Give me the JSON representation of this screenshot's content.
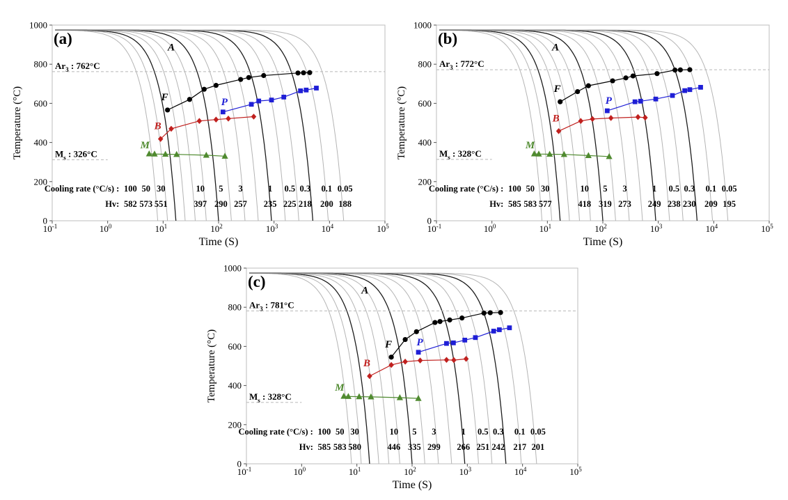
{
  "colors": {
    "ferrite": "#000000",
    "pearlite": "#1f1fd6",
    "bainite": "#c0201e",
    "martensite": "#4f8a2f",
    "cooling_curve": "#b4b4b4",
    "cooling_curve_bold": "#1c1c1c",
    "guide_line": "#b8b8b8"
  },
  "chart_data": [
    {
      "type": "line",
      "panel_label": "(a)",
      "ylabel": "Temperature (°C)",
      "xlabel": "Time (S)",
      "xscale": "log",
      "xlim": [
        0.1,
        100000
      ],
      "ylim": [
        0,
        1000
      ],
      "x_ticks": [
        {
          "base": "10",
          "exp": "-1"
        },
        {
          "base": "10",
          "exp": "0"
        },
        {
          "base": "10",
          "exp": "1"
        },
        {
          "base": "10",
          "exp": "2"
        },
        {
          "base": "10",
          "exp": "3"
        },
        {
          "base": "10",
          "exp": "4"
        },
        {
          "base": "10",
          "exp": "5"
        }
      ],
      "y_ticks": [
        "0",
        "200",
        "400",
        "600",
        "800",
        "1000"
      ],
      "ar3": {
        "label": "Ar",
        "sub": "3",
        "suffix": " : 762°C",
        "value": 762
      },
      "ms": {
        "label": "M",
        "sub": "s",
        "suffix": " : 326°C",
        "value": 326
      },
      "phase_labels": {
        "A": "A",
        "F": "F",
        "P": "P",
        "B": "B",
        "M": "M"
      },
      "cooling_rate_label": "Cooling rate (°C/s) :",
      "hv_label": "Hv:",
      "cooling_rates": [
        "100",
        "50",
        "30",
        "10",
        "5",
        "3",
        "1",
        "0.5",
        "0.3",
        "0.1",
        "0.05"
      ],
      "hv": [
        "582",
        "573",
        "551",
        "397",
        "290",
        "257",
        "235",
        "225",
        "218",
        "200",
        "188"
      ],
      "ferrite": {
        "x": [
          12,
          30,
          55,
          90,
          250,
          350,
          650,
          2700,
          3400,
          4400
        ],
        "y": [
          566,
          620,
          672,
          692,
          722,
          732,
          742,
          755,
          756,
          757
        ]
      },
      "pearlite": {
        "x": [
          120,
          390,
          530,
          900,
          1500,
          3000,
          3800,
          5800
        ],
        "y": [
          556,
          595,
          612,
          617,
          632,
          664,
          668,
          678
        ]
      },
      "bainite": {
        "x": [
          9,
          14,
          45,
          90,
          150,
          430
        ],
        "y": [
          418,
          470,
          510,
          517,
          522,
          532
        ]
      },
      "martensite": {
        "x": [
          5.6,
          7,
          11,
          17.5,
          60,
          130
        ],
        "y": [
          342,
          341,
          340,
          339,
          335,
          330
        ]
      }
    },
    {
      "type": "line",
      "panel_label": "(b)",
      "ylabel": "Temperature (°C)",
      "xlabel": "Time (S)",
      "xscale": "log",
      "xlim": [
        0.1,
        100000
      ],
      "ylim": [
        0,
        1000
      ],
      "x_ticks": [
        {
          "base": "10",
          "exp": "-1"
        },
        {
          "base": "10",
          "exp": "0"
        },
        {
          "base": "10",
          "exp": "1"
        },
        {
          "base": "10",
          "exp": "2"
        },
        {
          "base": "10",
          "exp": "3"
        },
        {
          "base": "10",
          "exp": "4"
        },
        {
          "base": "10",
          "exp": "5"
        }
      ],
      "y_ticks": [
        "0",
        "200",
        "400",
        "600",
        "800",
        "1000"
      ],
      "ar3": {
        "label": "Ar",
        "sub": "3",
        "suffix": " : 772°C",
        "value": 772
      },
      "ms": {
        "label": "M",
        "sub": "s",
        "suffix": " : 328°C",
        "value": 328
      },
      "phase_labels": {
        "A": "A",
        "F": "F",
        "P": "P",
        "B": "B",
        "M": "M"
      },
      "cooling_rate_label": "Cooling rate (°C/s) :",
      "hv_label": "Hv:",
      "cooling_rates": [
        "100",
        "50",
        "30",
        "10",
        "5",
        "3",
        "1",
        "0.5",
        "0.3",
        "0.1",
        "0.05"
      ],
      "hv": [
        "585",
        "583",
        "577",
        "418",
        "319",
        "273",
        "249",
        "238",
        "230",
        "209",
        "195"
      ],
      "ferrite": {
        "x": [
          17,
          35,
          55,
          150,
          260,
          350,
          950,
          2000,
          2500,
          3700
        ],
        "y": [
          608,
          660,
          690,
          715,
          730,
          740,
          752,
          770,
          771,
          772
        ]
      },
      "pearlite": {
        "x": [
          120,
          380,
          480,
          900,
          1800,
          3000,
          3700,
          5800
        ],
        "y": [
          562,
          608,
          611,
          622,
          640,
          665,
          670,
          682
        ]
      },
      "bainite": {
        "x": [
          16,
          40,
          65,
          140,
          430,
          580
        ],
        "y": [
          458,
          510,
          520,
          525,
          530,
          527
        ]
      },
      "martensite": {
        "x": [
          5.8,
          7,
          11,
          20,
          55,
          130
        ],
        "y": [
          342,
          341,
          340,
          339,
          333,
          328
        ]
      }
    },
    {
      "type": "line",
      "panel_label": "(c)",
      "ylabel": "Temperature (°C)",
      "xlabel": "Time (S)",
      "xscale": "log",
      "xlim": [
        0.1,
        100000
      ],
      "ylim": [
        0,
        1000
      ],
      "x_ticks": [
        {
          "base": "10",
          "exp": "-1"
        },
        {
          "base": "10",
          "exp": "0"
        },
        {
          "base": "10",
          "exp": "1"
        },
        {
          "base": "10",
          "exp": "2"
        },
        {
          "base": "10",
          "exp": "3"
        },
        {
          "base": "10",
          "exp": "4"
        },
        {
          "base": "10",
          "exp": "5"
        }
      ],
      "y_ticks": [
        "0",
        "200",
        "400",
        "600",
        "800",
        "1000"
      ],
      "ar3": {
        "label": "Ar",
        "sub": "3",
        "suffix": " : 781°C",
        "value": 781
      },
      "ms": {
        "label": "M",
        "sub": "s",
        "suffix": " : 328°C",
        "value": 328
      },
      "phase_labels": {
        "A": "A",
        "F": "F",
        "P": "P",
        "B": "B",
        "M": "M"
      },
      "cooling_rate_label": "Cooling rate (°C/s) :",
      "hv_label": "Hv:",
      "cooling_rates": [
        "100",
        "50",
        "30",
        "10",
        "5",
        "3",
        "1",
        "0.5",
        "0.3",
        "0.1",
        "0.05"
      ],
      "hv": [
        "585",
        "583",
        "580",
        "446",
        "335",
        "299",
        "266",
        "251",
        "242",
        "217",
        "201"
      ],
      "ferrite": {
        "x": [
          42,
          75,
          120,
          260,
          320,
          480,
          800,
          2000,
          2600,
          4000
        ],
        "y": [
          545,
          635,
          675,
          722,
          727,
          735,
          745,
          770,
          772,
          773
        ]
      },
      "pearlite": {
        "x": [
          130,
          420,
          560,
          900,
          1400,
          3000,
          3800,
          5800
        ],
        "y": [
          570,
          615,
          618,
          632,
          645,
          678,
          685,
          695
        ]
      },
      "bainite": {
        "x": [
          17,
          42,
          75,
          140,
          420,
          570,
          950
        ],
        "y": [
          448,
          505,
          522,
          528,
          531,
          530,
          536
        ]
      },
      "martensite": {
        "x": [
          5.8,
          7,
          11,
          18,
          60,
          130
        ],
        "y": [
          345,
          344,
          343,
          342,
          338,
          334
        ]
      }
    }
  ]
}
